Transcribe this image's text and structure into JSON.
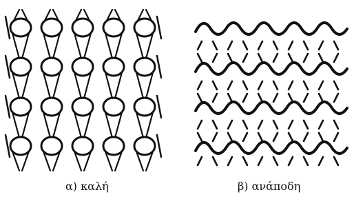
{
  "captions": {
    "left": "α) καλή",
    "right": "β) ανάποδη"
  }
}
